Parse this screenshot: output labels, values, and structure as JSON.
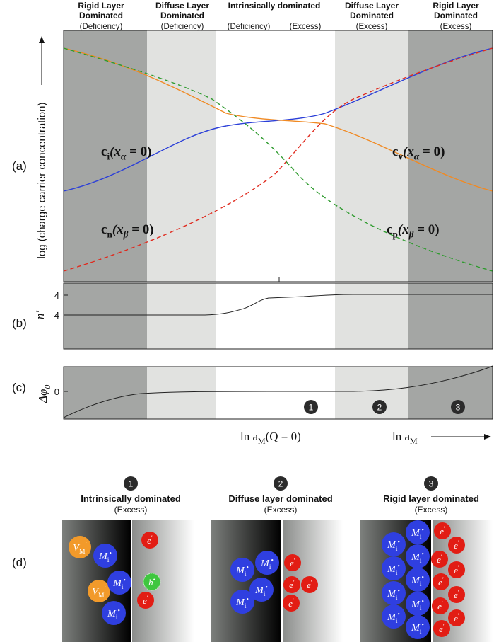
{
  "panel_labels": [
    "(a)",
    "(b)",
    "(c)",
    "(d)"
  ],
  "header": [
    {
      "lines": [
        "Rigid Layer",
        "Dominated"
      ],
      "notes": [
        "(Deficiency)"
      ]
    },
    {
      "lines": [
        "Diffuse Layer",
        "Dominated"
      ],
      "notes": [
        "(Deficiency)"
      ]
    },
    {
      "lines": [
        "Intrinsically dominated"
      ],
      "notes": [
        "(Deficiency)",
        "(Excess)"
      ]
    },
    {
      "lines": [
        "Diffuse Layer",
        "Dominated"
      ],
      "notes": [
        "(Excess)"
      ]
    },
    {
      "lines": [
        "Rigid Layer",
        "Dominated"
      ],
      "notes": [
        "(Excess)"
      ]
    }
  ],
  "y_axis_label": "log (charge carrier concentration)",
  "curve_labels": [
    {
      "base": "c",
      "sub": "i",
      "arg": "(x",
      "argsub": "α",
      "rest": " = 0)"
    },
    {
      "base": "c",
      "sub": "v",
      "arg": "(x",
      "argsub": "α",
      "rest": " = 0)"
    },
    {
      "base": "c",
      "sub": "n",
      "arg": "(x",
      "argsub": "β",
      "rest": " = 0)"
    },
    {
      "base": "c",
      "sub": "p",
      "arg": "(x",
      "argsub": "β",
      "rest": " = 0)"
    }
  ],
  "panel_b": {
    "axis_label": "n′",
    "ticks": [
      "4",
      "-4"
    ]
  },
  "panel_c": {
    "axis_label": {
      "base": "Δφ",
      "sub": "0"
    },
    "ticks": [
      "0"
    ],
    "markers": [
      "1",
      "2",
      "3"
    ]
  },
  "x_axis": {
    "label1": {
      "pre": "ln a",
      "sub": "M",
      "post": "(Q = 0)"
    },
    "label2": {
      "pre": "ln a",
      "sub": "M"
    }
  },
  "regimes": [
    {
      "number": "1",
      "title": "Intrinsically dominated",
      "note": "(Excess)"
    },
    {
      "number": "2",
      "title": "Diffuse layer dominated",
      "note": "(Excess)"
    },
    {
      "number": "3",
      "title": "Rigid layer dominated",
      "note": "(Excess)"
    }
  ],
  "species": {
    "mi": {
      "base": "M",
      "sub": "i",
      "sup": "•"
    },
    "vm": {
      "base": "V",
      "sub": "M",
      "sup": "′"
    },
    "e": {
      "base": "e",
      "sup": "′"
    },
    "h": {
      "base": "h",
      "sup": "•"
    }
  }
}
